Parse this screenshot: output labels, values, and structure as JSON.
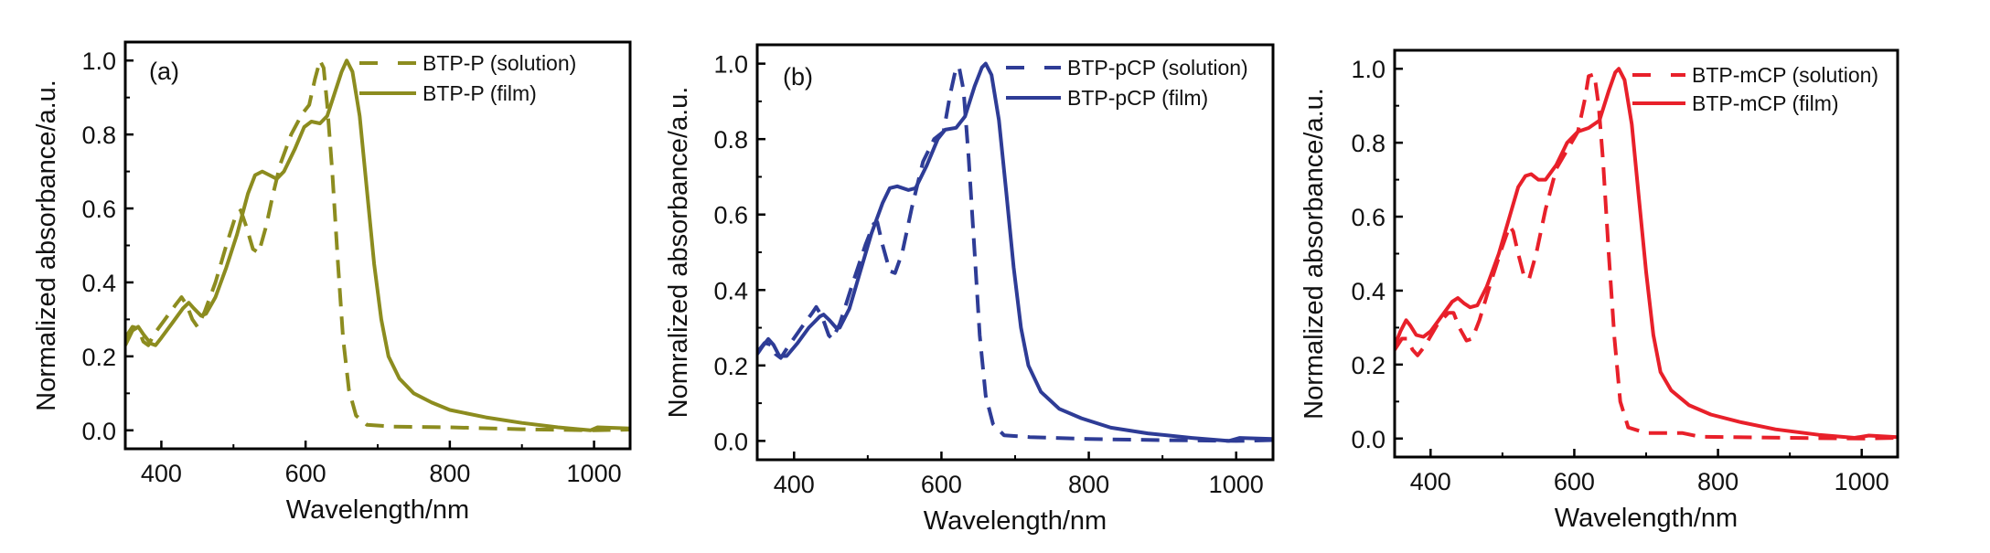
{
  "chart_data": [
    {
      "type": "line",
      "panel_label": "(a)",
      "xlabel": "Wavelength/nm",
      "ylabel": "Normalized absorbance/a.u.",
      "xlim": [
        350,
        1050
      ],
      "ylim": [
        -0.05,
        1.05
      ],
      "xticks": [
        400,
        600,
        800,
        1000
      ],
      "xtick_labels": [
        "400",
        "600",
        "800",
        "1000"
      ],
      "xminor_ticks": [
        500,
        700,
        900
      ],
      "yticks": [
        0.0,
        0.2,
        0.4,
        0.6,
        0.8,
        1.0
      ],
      "ytick_labels": [
        "0.0",
        "0.2",
        "0.4",
        "0.6",
        "0.8",
        "1.0"
      ],
      "yminor_ticks": [
        0.1,
        0.3,
        0.5,
        0.7,
        0.9
      ],
      "grid": false,
      "legend_position": "top-right",
      "series": [
        {
          "name": "BTP-P (solution)",
          "style": "dashed",
          "color": "#8c8c1f",
          "x": [
            350,
            360,
            368,
            375,
            382,
            390,
            405,
            420,
            428,
            435,
            443,
            450,
            460,
            475,
            490,
            503,
            510,
            518,
            527,
            535,
            545,
            555,
            565,
            580,
            595,
            605,
            613,
            620,
            625,
            630,
            637,
            645,
            652,
            660,
            670,
            685,
            720,
            800,
            900,
            1000,
            1050
          ],
          "y": [
            0.25,
            0.28,
            0.275,
            0.24,
            0.23,
            0.26,
            0.3,
            0.34,
            0.36,
            0.34,
            0.3,
            0.28,
            0.32,
            0.4,
            0.5,
            0.58,
            0.595,
            0.55,
            0.49,
            0.48,
            0.55,
            0.64,
            0.72,
            0.8,
            0.855,
            0.88,
            0.95,
            1.0,
            0.98,
            0.88,
            0.7,
            0.45,
            0.25,
            0.11,
            0.04,
            0.015,
            0.01,
            0.008,
            0.003,
            0.0,
            0.002
          ]
        },
        {
          "name": "BTP-P (film)",
          "style": "solid",
          "color": "#8c8c1f",
          "x": [
            350,
            360,
            368,
            375,
            385,
            392,
            400,
            415,
            430,
            438,
            445,
            455,
            462,
            475,
            490,
            505,
            520,
            530,
            540,
            550,
            560,
            570,
            585,
            598,
            608,
            620,
            630,
            640,
            650,
            657,
            665,
            675,
            685,
            695,
            705,
            715,
            730,
            750,
            775,
            800,
            850,
            900,
            950,
            995,
            1005,
            1050
          ],
          "y": [
            0.23,
            0.27,
            0.28,
            0.26,
            0.235,
            0.23,
            0.25,
            0.29,
            0.33,
            0.345,
            0.33,
            0.31,
            0.315,
            0.36,
            0.44,
            0.53,
            0.64,
            0.69,
            0.7,
            0.69,
            0.68,
            0.7,
            0.76,
            0.82,
            0.835,
            0.83,
            0.85,
            0.91,
            0.97,
            1.0,
            0.97,
            0.85,
            0.65,
            0.45,
            0.3,
            0.2,
            0.14,
            0.1,
            0.075,
            0.055,
            0.035,
            0.02,
            0.008,
            0.0,
            0.008,
            0.005
          ]
        }
      ]
    },
    {
      "type": "line",
      "panel_label": "(b)",
      "xlabel": "Wavelength/nm",
      "ylabel": "Nomralized absorbance/a.u.",
      "xlim": [
        350,
        1050
      ],
      "ylim": [
        -0.05,
        1.05
      ],
      "xticks": [
        400,
        600,
        800,
        1000
      ],
      "xtick_labels": [
        "400",
        "600",
        "800",
        "1000"
      ],
      "xminor_ticks": [
        500,
        700,
        900
      ],
      "yticks": [
        0.0,
        0.2,
        0.4,
        0.6,
        0.8,
        1.0
      ],
      "ytick_labels": [
        "0.0",
        "0.2",
        "0.4",
        "0.6",
        "0.8",
        "1.0"
      ],
      "yminor_ticks": [
        0.1,
        0.3,
        0.5,
        0.7,
        0.9
      ],
      "grid": false,
      "legend_position": "top-right",
      "series": [
        {
          "name": "BTP-pCP (solution)",
          "style": "dashed",
          "color": "#2e3c96",
          "x": [
            350,
            360,
            368,
            375,
            382,
            392,
            410,
            425,
            430,
            438,
            447,
            452,
            462,
            480,
            497,
            508,
            513,
            520,
            530,
            537,
            547,
            560,
            575,
            590,
            603,
            612,
            620,
            624,
            630,
            637,
            645,
            652,
            660,
            670,
            685,
            720,
            800,
            900,
            1000,
            1050
          ],
          "y": [
            0.235,
            0.26,
            0.255,
            0.23,
            0.22,
            0.25,
            0.3,
            0.34,
            0.355,
            0.33,
            0.28,
            0.27,
            0.31,
            0.42,
            0.52,
            0.575,
            0.58,
            0.52,
            0.45,
            0.445,
            0.5,
            0.62,
            0.74,
            0.8,
            0.82,
            0.92,
            0.99,
            0.99,
            0.93,
            0.75,
            0.5,
            0.28,
            0.12,
            0.045,
            0.015,
            0.01,
            0.005,
            0.002,
            0.0,
            0.002
          ]
        },
        {
          "name": "BTP-pCP (film)",
          "style": "solid",
          "color": "#2e3c96",
          "x": [
            350,
            357,
            365,
            372,
            380,
            390,
            405,
            420,
            435,
            440,
            448,
            457,
            462,
            475,
            490,
            505,
            520,
            530,
            540,
            555,
            565,
            580,
            595,
            605,
            620,
            632,
            645,
            655,
            660,
            668,
            678,
            688,
            698,
            708,
            718,
            735,
            760,
            790,
            830,
            880,
            940,
            990,
            1005,
            1050
          ],
          "y": [
            0.23,
            0.25,
            0.27,
            0.255,
            0.225,
            0.225,
            0.26,
            0.3,
            0.33,
            0.335,
            0.32,
            0.3,
            0.3,
            0.35,
            0.45,
            0.55,
            0.63,
            0.67,
            0.675,
            0.665,
            0.67,
            0.73,
            0.8,
            0.825,
            0.83,
            0.86,
            0.94,
            0.99,
            1.0,
            0.97,
            0.85,
            0.66,
            0.46,
            0.3,
            0.2,
            0.13,
            0.085,
            0.06,
            0.035,
            0.02,
            0.008,
            0.0,
            0.008,
            0.005
          ]
        }
      ]
    },
    {
      "type": "line",
      "panel_label": "",
      "xlabel": "Wavelength/nm",
      "ylabel": "Normalized absorbance/a.u.",
      "xlim": [
        350,
        1050
      ],
      "ylim": [
        -0.05,
        1.05
      ],
      "xticks": [
        400,
        600,
        800,
        1000
      ],
      "xtick_labels": [
        "400",
        "600",
        "800",
        "1000"
      ],
      "xminor_ticks": [
        500,
        700,
        900
      ],
      "yticks": [
        0.0,
        0.2,
        0.4,
        0.6,
        0.8,
        1.0
      ],
      "ytick_labels": [
        "0.0",
        "0.2",
        "0.4",
        "0.6",
        "0.8",
        "1.0"
      ],
      "yminor_ticks": [
        0.1,
        0.3,
        0.5,
        0.7,
        0.9
      ],
      "grid": false,
      "legend_position": "top-right",
      "series": [
        {
          "name": "BTP-mCP (solution)",
          "style": "dashed",
          "color": "#e8202a",
          "x": [
            350,
            360,
            367,
            375,
            382,
            392,
            410,
            425,
            432,
            440,
            450,
            458,
            468,
            485,
            500,
            510,
            515,
            522,
            530,
            537,
            547,
            560,
            575,
            590,
            605,
            615,
            620,
            628,
            634,
            640,
            648,
            656,
            664,
            675,
            700,
            750,
            775,
            900,
            1000,
            1050
          ],
          "y": [
            0.24,
            0.27,
            0.27,
            0.24,
            0.225,
            0.25,
            0.31,
            0.34,
            0.34,
            0.3,
            0.265,
            0.27,
            0.32,
            0.43,
            0.52,
            0.575,
            0.56,
            0.5,
            0.44,
            0.43,
            0.5,
            0.62,
            0.73,
            0.78,
            0.83,
            0.92,
            0.98,
            0.985,
            0.9,
            0.75,
            0.5,
            0.27,
            0.1,
            0.03,
            0.015,
            0.015,
            0.005,
            0.002,
            0.0,
            0.002
          ]
        },
        {
          "name": "BTP-mCP (film)",
          "style": "solid",
          "color": "#e8202a",
          "x": [
            350,
            358,
            366,
            372,
            380,
            390,
            400,
            415,
            430,
            438,
            447,
            455,
            465,
            478,
            495,
            510,
            522,
            532,
            540,
            550,
            560,
            575,
            590,
            605,
            620,
            635,
            648,
            657,
            662,
            670,
            680,
            690,
            700,
            710,
            720,
            735,
            760,
            790,
            830,
            880,
            940,
            990,
            1010,
            1050
          ],
          "y": [
            0.25,
            0.29,
            0.32,
            0.305,
            0.28,
            0.275,
            0.29,
            0.33,
            0.37,
            0.38,
            0.365,
            0.355,
            0.36,
            0.41,
            0.5,
            0.6,
            0.68,
            0.71,
            0.715,
            0.7,
            0.7,
            0.74,
            0.8,
            0.83,
            0.84,
            0.86,
            0.94,
            0.99,
            1.0,
            0.97,
            0.85,
            0.65,
            0.45,
            0.28,
            0.18,
            0.13,
            0.09,
            0.065,
            0.045,
            0.025,
            0.01,
            0.002,
            0.008,
            0.004
          ]
        }
      ]
    }
  ]
}
